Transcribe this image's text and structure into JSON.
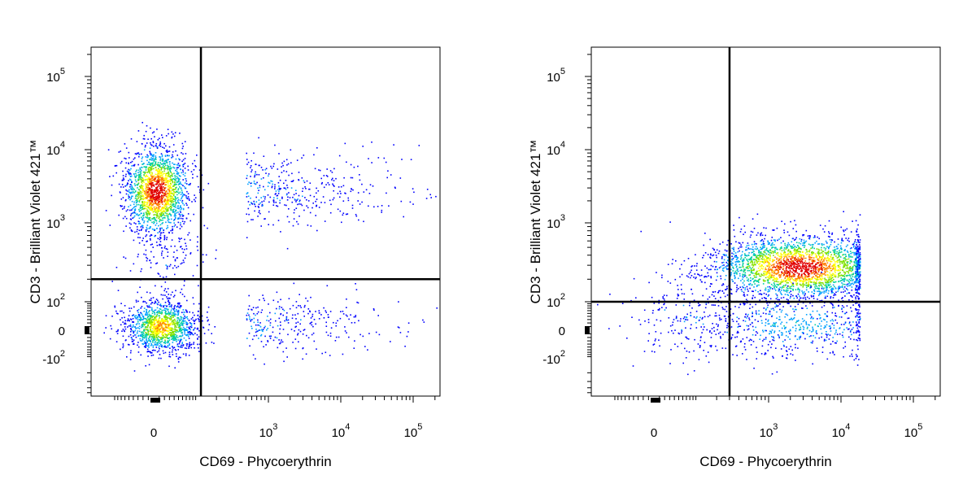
{
  "chart_data": [
    {
      "type": "scatter",
      "xlabel": "CD69 - Phycoerythrin",
      "ylabel": "CD3 - Brilliant Violet 421™",
      "x_scale": "biexponential",
      "y_scale": "biexponential",
      "xlim": [
        -300,
        200000
      ],
      "ylim": [
        -500,
        250000
      ],
      "x_ticks": [
        {
          "value": 0,
          "label": "0"
        },
        {
          "value": 1000,
          "base": "10",
          "exp": "3"
        },
        {
          "value": 10000,
          "base": "10",
          "exp": "4"
        },
        {
          "value": 100000,
          "base": "10",
          "exp": "5"
        }
      ],
      "y_ticks": [
        {
          "value": -100,
          "base": "-10",
          "exp": "2"
        },
        {
          "value": 0,
          "label": "0"
        },
        {
          "value": 100,
          "base": "10",
          "exp": "2"
        },
        {
          "value": 1000,
          "base": "10",
          "exp": "3"
        },
        {
          "value": 10000,
          "base": "10",
          "exp": "4"
        },
        {
          "value": 100000,
          "base": "10",
          "exp": "5"
        }
      ],
      "quadrant_gate": {
        "x": 120,
        "y": 200
      },
      "populations": [
        {
          "name": "",
          "x_center": 0,
          "y_center": 2500,
          "spread": "wide",
          "density": "high",
          "color_peak": "#d00000"
        },
        {
          "name": "",
          "x_center": 0,
          "y_center": 0,
          "spread": "medium",
          "density": "high",
          "color_peak": "#ffff00"
        },
        {
          "name": "",
          "x_center": 2000,
          "y_center": 2500,
          "spread": "tail",
          "density": "low",
          "color_peak": "#0000ff"
        }
      ],
      "grid": false,
      "legend": "none"
    },
    {
      "type": "scatter",
      "xlabel": "CD69 - Phycoerythrin",
      "ylabel": "CD3 - Brilliant Violet 421™",
      "x_scale": "biexponential",
      "y_scale": "biexponential",
      "xlim": [
        -300,
        200000
      ],
      "ylim": [
        -500,
        250000
      ],
      "x_ticks": [
        {
          "value": 0,
          "label": "0"
        },
        {
          "value": 1000,
          "base": "10",
          "exp": "3"
        },
        {
          "value": 10000,
          "base": "10",
          "exp": "4"
        },
        {
          "value": 100000,
          "base": "10",
          "exp": "5"
        }
      ],
      "y_ticks": [
        {
          "value": -100,
          "base": "-10",
          "exp": "2"
        },
        {
          "value": 0,
          "label": "0"
        },
        {
          "value": 100,
          "base": "10",
          "exp": "2"
        },
        {
          "value": 1000,
          "base": "10",
          "exp": "3"
        },
        {
          "value": 10000,
          "base": "10",
          "exp": "4"
        },
        {
          "value": 100000,
          "base": "10",
          "exp": "5"
        }
      ],
      "quadrant_gate": {
        "x": 300,
        "y": 100
      },
      "populations": [
        {
          "name": "",
          "x_center": 3000,
          "y_center": 300,
          "spread": "wide",
          "density": "high",
          "color_peak": "#d00000"
        }
      ],
      "grid": false,
      "legend": "none"
    }
  ],
  "colors": {
    "density_scale": [
      "#0000ff",
      "#00a0ff",
      "#00d0a0",
      "#80e000",
      "#ffff00",
      "#ff8000",
      "#e00000"
    ],
    "axis": "#000000",
    "gate": "#000000"
  }
}
